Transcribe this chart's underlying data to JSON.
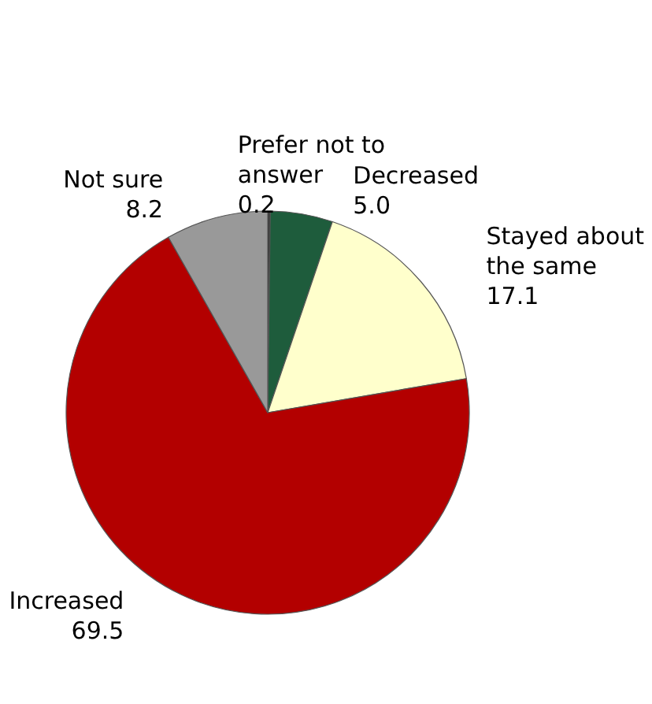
{
  "chart_data": {
    "type": "pie",
    "categories": [
      "Prefer not to answer",
      "Decreased",
      "Stayed about the same",
      "Increased",
      "Not sure"
    ],
    "values": [
      0.2,
      5.0,
      17.1,
      69.5,
      8.2
    ],
    "colors": [
      "#333333",
      "#1e5c3c",
      "#ffffcc",
      "#b30000",
      "#999999"
    ],
    "value_labels": [
      "0.2",
      "5.0",
      "17.1",
      "69.5",
      "8.2"
    ]
  }
}
